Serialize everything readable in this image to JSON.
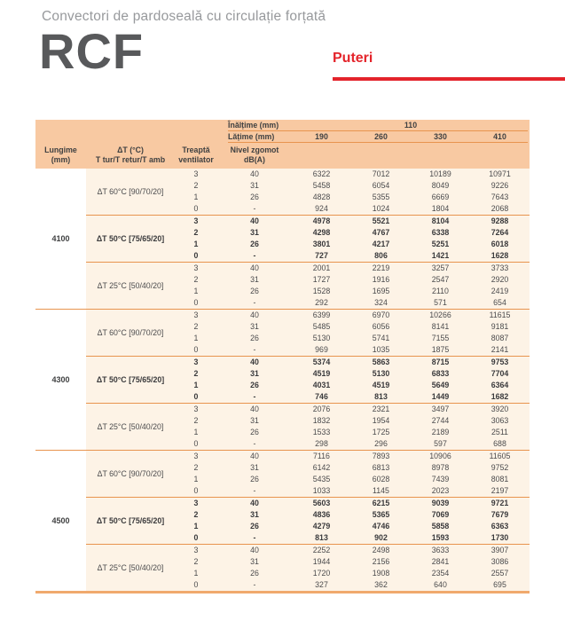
{
  "page": {
    "subtitle": "Convectori de pardoseală cu circulație forțată",
    "title": "RCF",
    "section_label": "Puteri"
  },
  "colors": {
    "accent_red": "#e4242b",
    "header_peach": "#f8c9a2",
    "body_cream": "#fdf3e6",
    "rule_orange": "#e8944e",
    "bottom_rule_orange": "#f0a96d",
    "title_gray": "#58595b",
    "subtitle_gray": "#97999c",
    "text_dark": "#3f4041"
  },
  "table": {
    "header": {
      "inaltime_label": "Înălțime (mm)",
      "inaltime_value": "110",
      "latime_label": "Lățime (mm)",
      "latime_values": [
        "190",
        "260",
        "330",
        "410"
      ],
      "lungime_line1": "Lungime",
      "lungime_line2": "(mm)",
      "dt_line1": "ΔT (°C)",
      "dt_line2": "T tur/T retur/T amb",
      "treapta_line1": "Treaptă",
      "treapta_line2": "ventilator",
      "zgomot_line1": "Nivel zgomot",
      "zgomot_line2": "dB(A)"
    },
    "groups": [
      {
        "lungime": "4100",
        "sections": [
          {
            "dt_label": "ΔT 60°C [90/70/20]",
            "bold": false,
            "rows": [
              {
                "treapta": "3",
                "zgomot": "40",
                "values": [
                  "6322",
                  "7012",
                  "10189",
                  "10971"
                ]
              },
              {
                "treapta": "2",
                "zgomot": "31",
                "values": [
                  "5458",
                  "6054",
                  "8049",
                  "9226"
                ]
              },
              {
                "treapta": "1",
                "zgomot": "26",
                "values": [
                  "4828",
                  "5355",
                  "6669",
                  "7643"
                ]
              },
              {
                "treapta": "0",
                "zgomot": "-",
                "values": [
                  "924",
                  "1024",
                  "1804",
                  "2068"
                ]
              }
            ]
          },
          {
            "dt_label": "ΔT 50°C [75/65/20]",
            "bold": true,
            "rows": [
              {
                "treapta": "3",
                "zgomot": "40",
                "values": [
                  "4978",
                  "5521",
                  "8104",
                  "9288"
                ]
              },
              {
                "treapta": "2",
                "zgomot": "31",
                "values": [
                  "4298",
                  "4767",
                  "6338",
                  "7264"
                ]
              },
              {
                "treapta": "1",
                "zgomot": "26",
                "values": [
                  "3801",
                  "4217",
                  "5251",
                  "6018"
                ]
              },
              {
                "treapta": "0",
                "zgomot": "-",
                "values": [
                  "727",
                  "806",
                  "1421",
                  "1628"
                ]
              }
            ]
          },
          {
            "dt_label": "ΔT 25°C [50/40/20]",
            "bold": false,
            "rows": [
              {
                "treapta": "3",
                "zgomot": "40",
                "values": [
                  "2001",
                  "2219",
                  "3257",
                  "3733"
                ]
              },
              {
                "treapta": "2",
                "zgomot": "31",
                "values": [
                  "1727",
                  "1916",
                  "2547",
                  "2920"
                ]
              },
              {
                "treapta": "1",
                "zgomot": "26",
                "values": [
                  "1528",
                  "1695",
                  "2110",
                  "2419"
                ]
              },
              {
                "treapta": "0",
                "zgomot": "-",
                "values": [
                  "292",
                  "324",
                  "571",
                  "654"
                ]
              }
            ]
          }
        ]
      },
      {
        "lungime": "4300",
        "sections": [
          {
            "dt_label": "ΔT 60°C [90/70/20]",
            "bold": false,
            "rows": [
              {
                "treapta": "3",
                "zgomot": "40",
                "values": [
                  "6399",
                  "6970",
                  "10266",
                  "11615"
                ]
              },
              {
                "treapta": "2",
                "zgomot": "31",
                "values": [
                  "5485",
                  "6056",
                  "8141",
                  "9181"
                ]
              },
              {
                "treapta": "1",
                "zgomot": "26",
                "values": [
                  "5130",
                  "5741",
                  "7155",
                  "8087"
                ]
              },
              {
                "treapta": "0",
                "zgomot": "-",
                "values": [
                  "969",
                  "1035",
                  "1875",
                  "2141"
                ]
              }
            ]
          },
          {
            "dt_label": "ΔT 50°C [75/65/20]",
            "bold": true,
            "rows": [
              {
                "treapta": "3",
                "zgomot": "40",
                "values": [
                  "5374",
                  "5863",
                  "8715",
                  "9753"
                ]
              },
              {
                "treapta": "2",
                "zgomot": "31",
                "values": [
                  "4519",
                  "5130",
                  "6833",
                  "7704"
                ]
              },
              {
                "treapta": "1",
                "zgomot": "26",
                "values": [
                  "4031",
                  "4519",
                  "5649",
                  "6364"
                ]
              },
              {
                "treapta": "0",
                "zgomot": "-",
                "values": [
                  "746",
                  "813",
                  "1449",
                  "1682"
                ]
              }
            ]
          },
          {
            "dt_label": "ΔT 25°C [50/40/20]",
            "bold": false,
            "rows": [
              {
                "treapta": "3",
                "zgomot": "40",
                "values": [
                  "2076",
                  "2321",
                  "3497",
                  "3920"
                ]
              },
              {
                "treapta": "2",
                "zgomot": "31",
                "values": [
                  "1832",
                  "1954",
                  "2744",
                  "3063"
                ]
              },
              {
                "treapta": "1",
                "zgomot": "26",
                "values": [
                  "1533",
                  "1725",
                  "2189",
                  "2511"
                ]
              },
              {
                "treapta": "0",
                "zgomot": "-",
                "values": [
                  "298",
                  "296",
                  "597",
                  "688"
                ]
              }
            ]
          }
        ]
      },
      {
        "lungime": "4500",
        "sections": [
          {
            "dt_label": "ΔT 60°C [90/70/20]",
            "bold": false,
            "rows": [
              {
                "treapta": "3",
                "zgomot": "40",
                "values": [
                  "7116",
                  "7893",
                  "10906",
                  "11605"
                ]
              },
              {
                "treapta": "2",
                "zgomot": "31",
                "values": [
                  "6142",
                  "6813",
                  "8978",
                  "9752"
                ]
              },
              {
                "treapta": "1",
                "zgomot": "26",
                "values": [
                  "5435",
                  "6028",
                  "7439",
                  "8081"
                ]
              },
              {
                "treapta": "0",
                "zgomot": "-",
                "values": [
                  "1033",
                  "1145",
                  "2023",
                  "2197"
                ]
              }
            ]
          },
          {
            "dt_label": "ΔT 50°C [75/65/20]",
            "bold": true,
            "rows": [
              {
                "treapta": "3",
                "zgomot": "40",
                "values": [
                  "5603",
                  "6215",
                  "9039",
                  "9721"
                ]
              },
              {
                "treapta": "2",
                "zgomot": "31",
                "values": [
                  "4836",
                  "5365",
                  "7069",
                  "7679"
                ]
              },
              {
                "treapta": "1",
                "zgomot": "26",
                "values": [
                  "4279",
                  "4746",
                  "5858",
                  "6363"
                ]
              },
              {
                "treapta": "0",
                "zgomot": "-",
                "values": [
                  "813",
                  "902",
                  "1593",
                  "1730"
                ]
              }
            ]
          },
          {
            "dt_label": "ΔT 25°C [50/40/20]",
            "bold": false,
            "rows": [
              {
                "treapta": "3",
                "zgomot": "40",
                "values": [
                  "2252",
                  "2498",
                  "3633",
                  "3907"
                ]
              },
              {
                "treapta": "2",
                "zgomot": "31",
                "values": [
                  "1944",
                  "2156",
                  "2841",
                  "3086"
                ]
              },
              {
                "treapta": "1",
                "zgomot": "26",
                "values": [
                  "1720",
                  "1908",
                  "2354",
                  "2557"
                ]
              },
              {
                "treapta": "0",
                "zgomot": "-",
                "values": [
                  "327",
                  "362",
                  "640",
                  "695"
                ]
              }
            ]
          }
        ]
      }
    ]
  }
}
